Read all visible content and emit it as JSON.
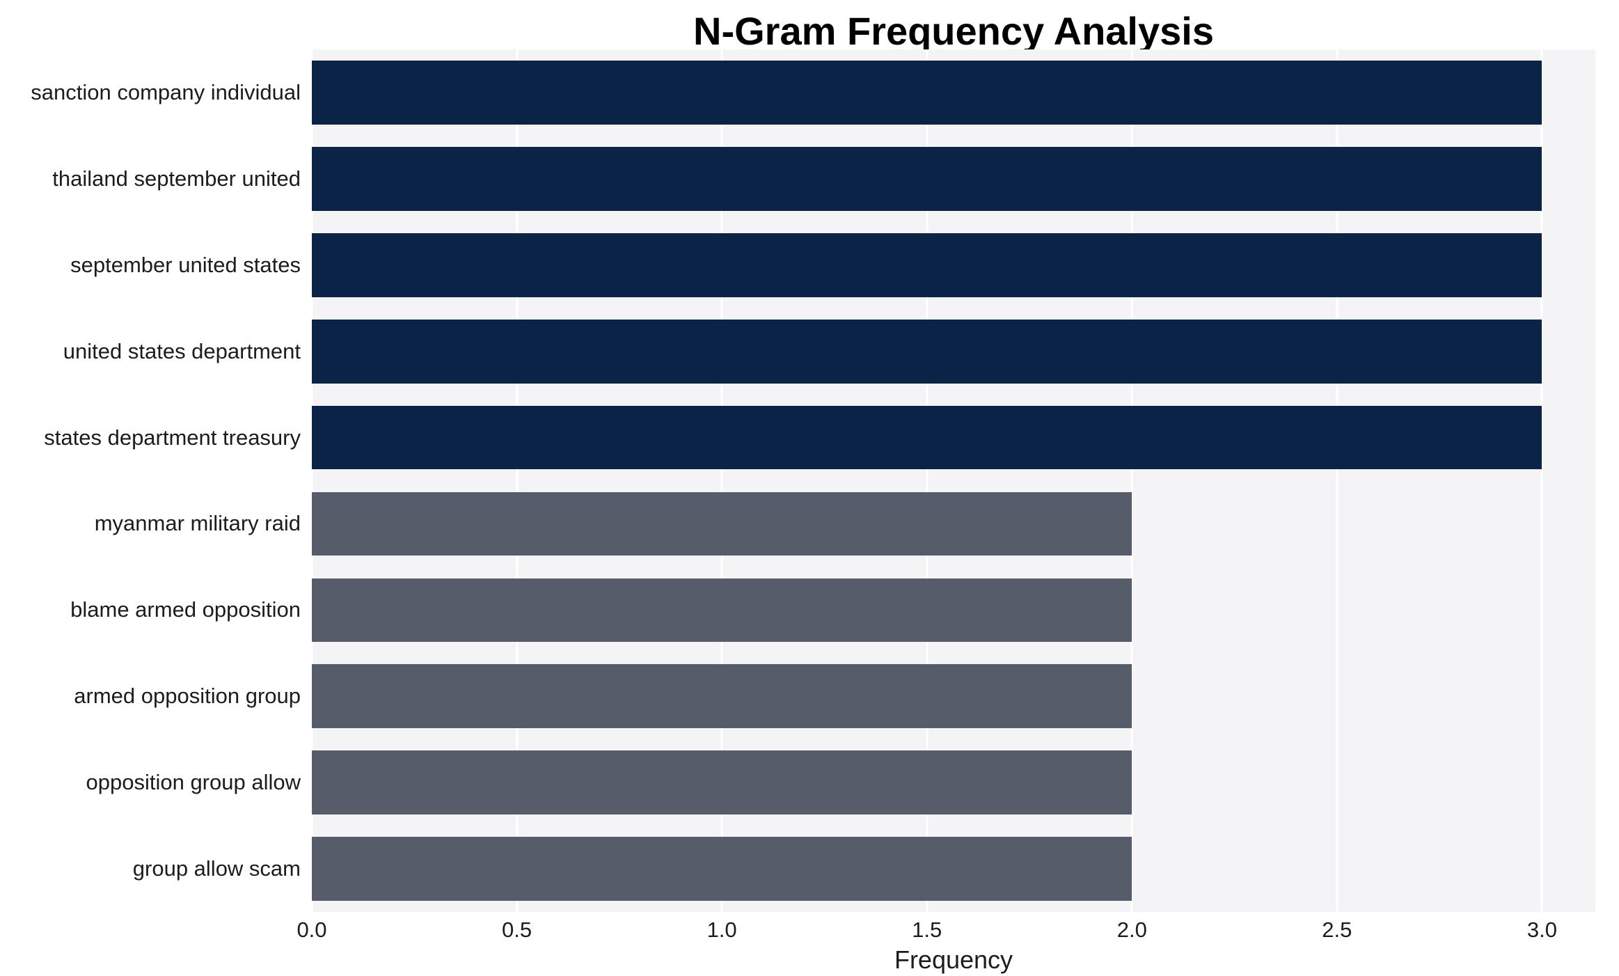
{
  "chart_data": {
    "type": "bar",
    "orientation": "horizontal",
    "title": "N-Gram Frequency Analysis",
    "xlabel": "Frequency",
    "ylabel": "",
    "categories": [
      "sanction company individual",
      "thailand september united",
      "september united states",
      "united states department",
      "states department treasury",
      "myanmar military raid",
      "blame armed opposition",
      "armed opposition group",
      "opposition group allow",
      "group allow scam"
    ],
    "values": [
      3,
      3,
      3,
      3,
      3,
      2,
      2,
      2,
      2,
      2
    ],
    "bar_colors": [
      "#0b2347",
      "#0b2347",
      "#0b2347",
      "#0b2347",
      "#0b2347",
      "#575c6a",
      "#575c6a",
      "#575c6a",
      "#575c6a",
      "#575c6a"
    ],
    "xlim": [
      0,
      3.13
    ],
    "xticks": [
      0.0,
      0.5,
      1.0,
      1.5,
      2.0,
      2.5,
      3.0
    ],
    "xtick_labels": [
      "0.0",
      "0.5",
      "1.0",
      "1.5",
      "2.0",
      "2.5",
      "3.0"
    ],
    "grid": true,
    "legend": "none",
    "plot_background": "#f4f4f6",
    "colors": {
      "high_frequency": "#0b2347",
      "low_frequency": "#575c6a"
    }
  }
}
